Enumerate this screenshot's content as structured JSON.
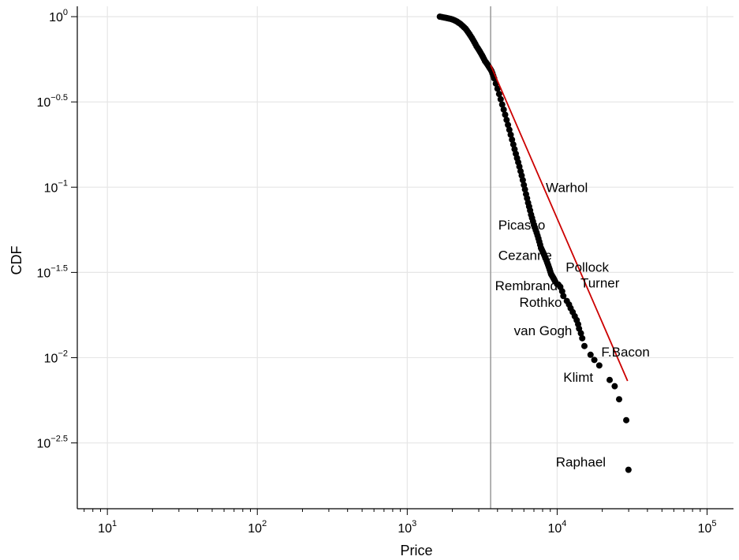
{
  "chart_data": {
    "type": "scatter",
    "xlabel": "Price",
    "ylabel": "CDF",
    "x_scale": "log10",
    "y_scale": "log10",
    "xlim": [
      6.3,
      150000
    ],
    "ylim": [
      0.0013,
      1.15
    ],
    "grid": true,
    "x_ticks": [
      {
        "value": 10,
        "base": "10",
        "exp": "1"
      },
      {
        "value": 100,
        "base": "10",
        "exp": "2"
      },
      {
        "value": 1000,
        "base": "10",
        "exp": "3"
      },
      {
        "value": 10000,
        "base": "10",
        "exp": "4"
      },
      {
        "value": 100000,
        "base": "10",
        "exp": "5"
      }
    ],
    "y_ticks": [
      {
        "value": 1,
        "base": "10",
        "exp": "0"
      },
      {
        "value": 0.3162,
        "base": "10",
        "exp": "−0.5"
      },
      {
        "value": 0.1,
        "base": "10",
        "exp": "−1"
      },
      {
        "value": 0.03162,
        "base": "10",
        "exp": "−1.5"
      },
      {
        "value": 0.01,
        "base": "10",
        "exp": "−2"
      },
      {
        "value": 0.003162,
        "base": "10",
        "exp": "−2.5"
      }
    ],
    "vertical_line_x": 3600,
    "vertical_line_color": "#999999",
    "point_color": "#000000",
    "fit_line": {
      "color": "#cc0000",
      "x": [
        3600,
        29500
      ],
      "y": [
        0.52,
        0.0073
      ]
    },
    "series": [
      {
        "x": [
          1650,
          1700,
          1750,
          1800,
          1850,
          1900,
          1950,
          2000,
          2050,
          2100,
          2150,
          2200,
          2250,
          2300,
          2350,
          2400,
          2450,
          2500,
          2550,
          2600,
          2650,
          2700,
          2750,
          2800,
          2850,
          2900,
          2950,
          3000,
          3050,
          3100,
          3150,
          3200,
          3250,
          3300,
          3350,
          3400,
          3450,
          3500,
          3550,
          3600,
          3650,
          3700,
          3750,
          3800,
          3900,
          4000,
          4100,
          4200,
          4300,
          4400,
          4500,
          4600,
          4700,
          4800,
          4900,
          5000,
          5100,
          5200,
          5300,
          5400,
          5500,
          5600,
          5700,
          5800,
          5900,
          6000,
          6100,
          6200,
          6300,
          6400,
          6500,
          6600,
          6700,
          6800,
          6900,
          7000,
          7100,
          7200,
          7300,
          7400,
          7500,
          7600,
          7700,
          7800,
          7900,
          8000,
          8100,
          8200,
          8300,
          8400,
          8500,
          8600,
          8700,
          8800,
          8900,
          9000,
          9100,
          9200,
          9300,
          9400,
          9500,
          9600,
          9700,
          10000,
          10200,
          10500,
          10800,
          11000,
          11600,
          12000,
          12300,
          12700,
          13100,
          13500,
          13800,
          14000,
          14400,
          14700,
          15200,
          16700,
          17700,
          19100,
          22400,
          24200,
          25900,
          28900,
          29900
        ],
        "y": [
          1.0,
          0.995,
          0.99,
          0.985,
          0.98,
          0.975,
          0.97,
          0.963,
          0.955,
          0.945,
          0.935,
          0.922,
          0.91,
          0.895,
          0.88,
          0.865,
          0.85,
          0.83,
          0.81,
          0.79,
          0.77,
          0.75,
          0.73,
          0.71,
          0.69,
          0.67,
          0.655,
          0.64,
          0.625,
          0.61,
          0.595,
          0.58,
          0.565,
          0.55,
          0.54,
          0.53,
          0.52,
          0.51,
          0.5,
          0.49,
          0.48,
          0.465,
          0.45,
          0.435,
          0.405,
          0.378,
          0.352,
          0.328,
          0.305,
          0.285,
          0.266,
          0.248,
          0.232,
          0.217,
          0.203,
          0.19,
          0.178,
          0.167,
          0.157,
          0.148,
          0.14,
          0.132,
          0.124,
          0.117,
          0.11,
          0.103,
          0.097,
          0.091,
          0.086,
          0.081,
          0.077,
          0.073,
          0.069,
          0.066,
          0.063,
          0.06,
          0.058,
          0.056,
          0.054,
          0.052,
          0.05,
          0.048,
          0.046,
          0.044,
          0.043,
          0.042,
          0.041,
          0.04,
          0.039,
          0.038,
          0.037,
          0.036,
          0.035,
          0.034,
          0.033,
          0.032,
          0.031,
          0.0305,
          0.03,
          0.0295,
          0.029,
          0.0285,
          0.028,
          0.027,
          0.0268,
          0.026,
          0.0245,
          0.023,
          0.0215,
          0.0205,
          0.0195,
          0.0185,
          0.0175,
          0.0166,
          0.0157,
          0.0148,
          0.0139,
          0.013,
          0.0117,
          0.0104,
          0.0097,
          0.009,
          0.0074,
          0.0068,
          0.0057,
          0.0043,
          0.0022
        ]
      }
    ],
    "annotations": [
      {
        "text": "Warhol",
        "x": 8400,
        "y": 0.1,
        "anchor": "start"
      },
      {
        "text": "Picasso",
        "x": 4050,
        "y": 0.06,
        "anchor": "start"
      },
      {
        "text": "Cezanne",
        "x": 4050,
        "y": 0.04,
        "anchor": "start"
      },
      {
        "text": "Pollock",
        "x": 11400,
        "y": 0.034,
        "anchor": "start"
      },
      {
        "text": "Turner",
        "x": 14300,
        "y": 0.0275,
        "anchor": "start"
      },
      {
        "text": "Rembrandt",
        "x": 3850,
        "y": 0.0265,
        "anchor": "start"
      },
      {
        "text": "Rothko",
        "x": 5600,
        "y": 0.0212,
        "anchor": "start"
      },
      {
        "text": "van Gogh",
        "x": 5150,
        "y": 0.0144,
        "anchor": "start"
      },
      {
        "text": "F.Bacon",
        "x": 19700,
        "y": 0.0108,
        "anchor": "start"
      },
      {
        "text": "Klimt",
        "x": 11000,
        "y": 0.0077,
        "anchor": "start"
      },
      {
        "text": "Raphael",
        "x": 9800,
        "y": 0.00245,
        "anchor": "start"
      }
    ]
  }
}
